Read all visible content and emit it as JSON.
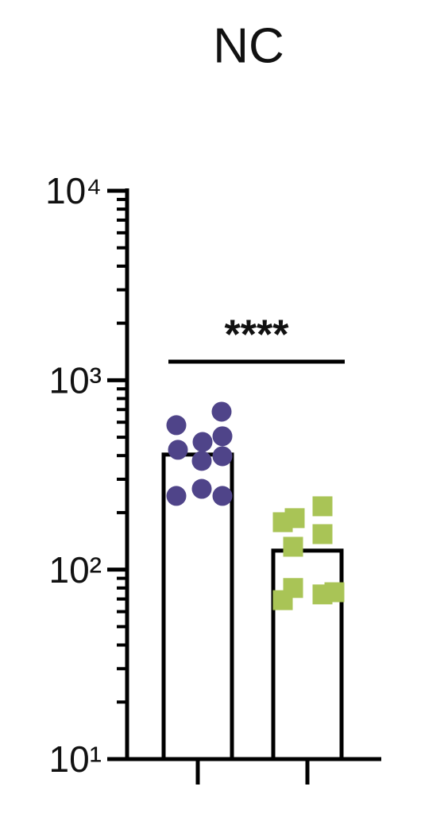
{
  "chart_data": {
    "type": "bar",
    "title": "NC",
    "categories": [
      null,
      null
    ],
    "values": [
      405,
      126
    ],
    "points": [
      {
        "color": "#4f4489",
        "marker": "circle",
        "values": [
          579,
          682,
          429,
          472,
          506,
          375,
          397,
          245,
          267,
          245
        ]
      },
      {
        "color": "#a9c456",
        "marker": "square",
        "values": [
          178,
          187,
          216,
          154,
          132,
          80,
          69,
          74,
          76
        ]
      }
    ],
    "log_scale": true,
    "ylim": [
      10,
      10000
    ],
    "yticks": [
      {
        "value": 10,
        "label": "10¹"
      },
      {
        "value": 100,
        "label": "10²"
      },
      {
        "value": 1000,
        "label": "10³"
      },
      {
        "value": 10000,
        "label": "10⁴"
      }
    ],
    "annotations": [
      {
        "text": "****"
      }
    ]
  }
}
